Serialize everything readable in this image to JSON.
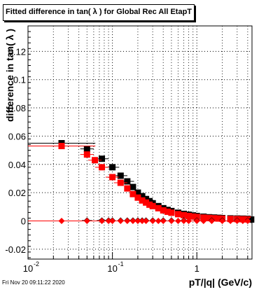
{
  "title": "Fitted difference in tan( λ ) for Global Rec All EtapT",
  "timestamp": "Fri Nov 20 09:11:22 2020",
  "chart_data": {
    "type": "scatter",
    "title": "Fitted difference in tan( λ ) for Global Rec All EtapT",
    "xlabel": "pT/|q| (GeV/c)",
    "ylabel": "difference in tan( λ )",
    "x_scale": "log",
    "xlim": [
      0.01,
      4.5
    ],
    "ylim": [
      -0.027,
      0.138
    ],
    "grid": true,
    "x_ticks": [
      {
        "value": 0.01,
        "label": "10",
        "exp": "-2"
      },
      {
        "value": 0.1,
        "label": "10",
        "exp": "-1"
      },
      {
        "value": 1,
        "label": "1",
        "exp": ""
      }
    ],
    "y_ticks": [
      {
        "value": -0.02,
        "label": "-0.02"
      },
      {
        "value": 0,
        "label": "0"
      },
      {
        "value": 0.02,
        "label": "0.02"
      },
      {
        "value": 0.04,
        "label": "0.04"
      },
      {
        "value": 0.06,
        "label": "0.06"
      },
      {
        "value": 0.08,
        "label": "0.08"
      },
      {
        "value": 0.1,
        "label": "0.1"
      },
      {
        "value": 0.12,
        "label": "0.12"
      }
    ],
    "series": [
      {
        "color": "#000000",
        "marker": "square",
        "x": [
          0.025,
          0.05,
          0.075,
          0.1,
          0.125,
          0.15,
          0.175,
          0.2,
          0.225,
          0.25,
          0.275,
          0.3,
          0.35,
          0.4,
          0.45,
          0.5,
          0.6,
          0.7,
          0.8,
          0.9,
          1.0,
          1.2,
          1.4,
          1.6,
          1.8,
          2.0,
          2.5,
          3.0,
          3.5,
          4.0,
          4.4
        ],
        "y": [
          0.055,
          0.051,
          0.044,
          0.038,
          0.032,
          0.028,
          0.024,
          0.02,
          0.0175,
          0.0155,
          0.014,
          0.0125,
          0.0105,
          0.009,
          0.0078,
          0.007,
          0.0058,
          0.005,
          0.0044,
          0.0039,
          0.0035,
          0.003,
          0.0026,
          0.0024,
          0.0022,
          0.002,
          0.0018,
          0.0017,
          0.0016,
          0.0015,
          0.001
        ]
      },
      {
        "color": "#ff0000",
        "marker": "square",
        "x": [
          0.025,
          0.05,
          0.062,
          0.075,
          0.1,
          0.125,
          0.15,
          0.175,
          0.2,
          0.225,
          0.25,
          0.275,
          0.3,
          0.35,
          0.4,
          0.45,
          0.5,
          0.6,
          0.7,
          0.8,
          0.9,
          1.0,
          1.2,
          1.4,
          1.6,
          1.8,
          2.0,
          2.5,
          3.0,
          3.5,
          4.0
        ],
        "y": [
          0.053,
          0.047,
          0.043,
          0.038,
          0.031,
          0.027,
          0.023,
          0.019,
          0.0165,
          0.0145,
          0.013,
          0.0115,
          0.0105,
          0.009,
          0.0075,
          0.0065,
          0.0058,
          0.0048,
          0.0041,
          0.0035,
          0.0031,
          0.0028,
          0.0024,
          0.0021,
          0.0019,
          0.0017,
          0.0016,
          0.0014,
          0.0013,
          0.0012,
          0.0011
        ]
      },
      {
        "color": "#000000",
        "marker": "diamond",
        "x": [
          0.05,
          0.075,
          0.09,
          0.1,
          0.125,
          0.15,
          0.175,
          0.2,
          0.225,
          0.25,
          0.3,
          0.4,
          0.5,
          0.7,
          1.0,
          1.5,
          2.0,
          3.0,
          4.0,
          4.4
        ],
        "y": [
          0.0003,
          0.0003,
          0.0003,
          0.0003,
          0.0003,
          0.0003,
          0.0003,
          0.0003,
          0.0003,
          0.0003,
          0.0003,
          0.0003,
          0.0003,
          0.0003,
          0.0003,
          0.0003,
          0.0003,
          0.0003,
          0.0003,
          0.0006
        ]
      },
      {
        "color": "#ff0000",
        "marker": "diamond",
        "x": [
          0.025,
          0.05,
          0.075,
          0.09,
          0.1,
          0.125,
          0.15,
          0.175,
          0.2,
          0.225,
          0.25,
          0.3,
          0.35,
          0.4,
          0.5,
          0.6,
          0.7,
          0.8,
          1.0,
          1.2,
          1.5,
          2.0,
          2.5,
          3.0,
          3.5,
          4.0
        ],
        "y": [
          0.0,
          0.0,
          0.0,
          0.0,
          0.0,
          0.0,
          0.0,
          0.0,
          0.0,
          0.0,
          0.0,
          0.0,
          0.0,
          0.0,
          0.0,
          0.0,
          0.0,
          0.0,
          0.0,
          0.0,
          0.0,
          0.0,
          0.0,
          0.0,
          0.0,
          0.0
        ]
      }
    ]
  }
}
